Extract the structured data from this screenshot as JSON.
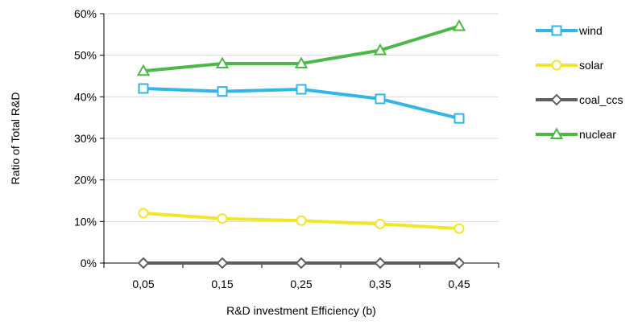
{
  "chart_data": {
    "type": "line",
    "xlabel": "R&D investment Efficiency (b)",
    "ylabel": "Ratio of Total R&D",
    "categories": [
      "0,05",
      "0,15",
      "0,25",
      "0,35",
      "0,45"
    ],
    "ylim": [
      0,
      60
    ],
    "yticks": [
      "0%",
      "10%",
      "20%",
      "30%",
      "40%",
      "50%",
      "60%"
    ],
    "grid": "horizontal",
    "legend_position": "right",
    "series": [
      {
        "name": "wind",
        "values": [
          42,
          41.3,
          41.8,
          39.5,
          34.8
        ],
        "color": "#33b5e5",
        "marker": "square"
      },
      {
        "name": "solar",
        "values": [
          12,
          10.7,
          10.2,
          9.4,
          8.3
        ],
        "color": "#f2e62b",
        "marker": "circle"
      },
      {
        "name": "coal_ccs",
        "values": [
          0,
          0,
          0,
          0,
          0
        ],
        "color": "#5f5f5f",
        "marker": "diamond"
      },
      {
        "name": "nuclear",
        "values": [
          46.2,
          48,
          48,
          51.2,
          57
        ],
        "color": "#4cb848",
        "marker": "triangle"
      }
    ]
  }
}
